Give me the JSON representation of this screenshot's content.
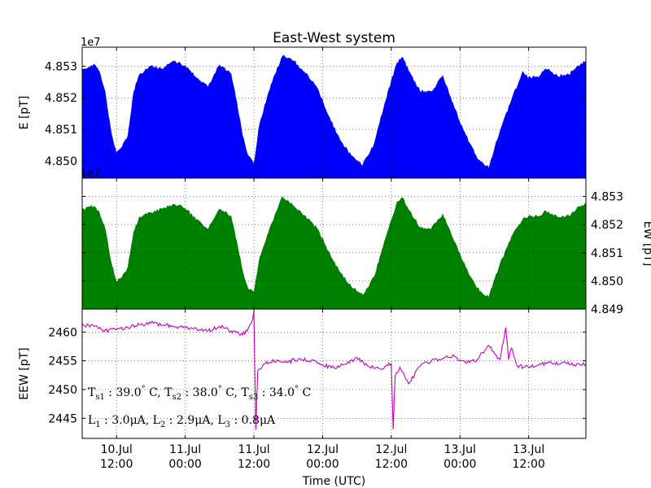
{
  "chart_data": {
    "title": "East-West system",
    "xlabel": "Time (UTC)",
    "time_range": [
      "2015-07-10 06:00",
      "2015-07-13 22:00"
    ],
    "x_ticks": [
      {
        "t": "2015-07-10 12:00",
        "line1": "10.Jul",
        "line2": "12:00"
      },
      {
        "t": "2015-07-11 00:00",
        "line1": "11.Jul",
        "line2": "00:00"
      },
      {
        "t": "2015-07-11 12:00",
        "line1": "11.Jul",
        "line2": "12:00"
      },
      {
        "t": "2015-07-12 00:00",
        "line1": "12.Jul",
        "line2": "00:00"
      },
      {
        "t": "2015-07-12 12:00",
        "line1": "12.Jul",
        "line2": "12:00"
      },
      {
        "t": "2015-07-13 00:00",
        "line1": "13.Jul",
        "line2": "00:00"
      },
      {
        "t": "2015-07-13 12:00",
        "line1": "13.Jul",
        "line2": "12:00"
      }
    ],
    "grid": true,
    "panels": [
      {
        "key": "E",
        "type": "area",
        "ylabel": "E [pT]",
        "ylabel_side": "left",
        "color": "#0000ff",
        "multiplier": "1e7",
        "ylim": [
          48494600,
          48536000
        ],
        "yticks": [
          {
            "v": 48500000,
            "label": "4.850"
          },
          {
            "v": 48510000,
            "label": "4.851"
          },
          {
            "v": 48520000,
            "label": "4.852"
          },
          {
            "v": 48530000,
            "label": "4.853"
          }
        ],
        "series": {
          "x": [
            "2015-07-10 06:00",
            "2015-07-10 07:00",
            "2015-07-10 08:00",
            "2015-07-10 09:00",
            "2015-07-10 10:00",
            "2015-07-10 11:00",
            "2015-07-10 12:00",
            "2015-07-10 13:00",
            "2015-07-10 14:00",
            "2015-07-10 15:00",
            "2015-07-10 16:00",
            "2015-07-10 18:00",
            "2015-07-10 20:00",
            "2015-07-10 22:00",
            "2015-07-11 00:00",
            "2015-07-11 02:00",
            "2015-07-11 04:00",
            "2015-07-11 06:00",
            "2015-07-11 08:00",
            "2015-07-11 09:00",
            "2015-07-11 10:00",
            "2015-07-11 11:00",
            "2015-07-11 12:00",
            "2015-07-11 13:00",
            "2015-07-11 15:00",
            "2015-07-11 17:00",
            "2015-07-11 19:00",
            "2015-07-11 21:00",
            "2015-07-11 23:00",
            "2015-07-12 01:00",
            "2015-07-12 03:00",
            "2015-07-12 05:00",
            "2015-07-12 07:00",
            "2015-07-12 09:00",
            "2015-07-12 10:00",
            "2015-07-12 11:00",
            "2015-07-12 12:00",
            "2015-07-12 13:00",
            "2015-07-12 14:00",
            "2015-07-12 15:00",
            "2015-07-12 17:00",
            "2015-07-12 19:00",
            "2015-07-12 21:00",
            "2015-07-12 23:00",
            "2015-07-13 01:00",
            "2015-07-13 03:00",
            "2015-07-13 05:00",
            "2015-07-13 07:00",
            "2015-07-13 09:00",
            "2015-07-13 11:00",
            "2015-07-13 12:00",
            "2015-07-13 13:00",
            "2015-07-13 14:00",
            "2015-07-13 15:00",
            "2015-07-13 17:00",
            "2015-07-13 19:00",
            "2015-07-13 21:00",
            "2015-07-13 22:00"
          ],
          "y": [
            48528700,
            48529500,
            48530600,
            48528300,
            48522000,
            48509700,
            48502300,
            48504500,
            48508200,
            48521900,
            48527300,
            48529900,
            48529100,
            48531600,
            48530200,
            48526100,
            48523300,
            48530400,
            48527700,
            48518800,
            48508000,
            48501700,
            48499000,
            48511700,
            48524200,
            48533200,
            48531600,
            48527700,
            48523300,
            48514400,
            48506800,
            48501700,
            48498700,
            48505300,
            48512300,
            48519000,
            48525200,
            48531100,
            48532800,
            48528600,
            48522100,
            48521900,
            48527000,
            48516800,
            48508200,
            48500800,
            48497800,
            48509500,
            48519300,
            48528300,
            48526300,
            48526600,
            48527000,
            48529100,
            48526900,
            48527300,
            48530400,
            48531600
          ]
        }
      },
      {
        "key": "EW",
        "type": "area",
        "ylabel": "EW [pT]",
        "ylabel_side": "right",
        "color": "#008000",
        "multiplier": "1e7",
        "ylim": [
          48490000,
          48536500
        ],
        "yticks": [
          {
            "v": 48490000,
            "label": "4.849"
          },
          {
            "v": 48500000,
            "label": "4.850"
          },
          {
            "v": 48510000,
            "label": "4.851"
          },
          {
            "v": 48520000,
            "label": "4.852"
          },
          {
            "v": 48530000,
            "label": "4.853"
          }
        ],
        "series": {
          "x": [
            "2015-07-10 06:00",
            "2015-07-10 07:00",
            "2015-07-10 08:00",
            "2015-07-10 09:00",
            "2015-07-10 10:00",
            "2015-07-10 11:00",
            "2015-07-10 12:00",
            "2015-07-10 13:00",
            "2015-07-10 14:00",
            "2015-07-10 15:00",
            "2015-07-10 16:00",
            "2015-07-10 18:00",
            "2015-07-10 20:00",
            "2015-07-10 22:00",
            "2015-07-11 00:00",
            "2015-07-11 02:00",
            "2015-07-11 04:00",
            "2015-07-11 06:00",
            "2015-07-11 08:00",
            "2015-07-11 09:00",
            "2015-07-11 10:00",
            "2015-07-11 11:00",
            "2015-07-11 12:00",
            "2015-07-11 13:00",
            "2015-07-11 15:00",
            "2015-07-11 17:00",
            "2015-07-11 19:00",
            "2015-07-11 21:00",
            "2015-07-11 23:00",
            "2015-07-12 01:00",
            "2015-07-12 03:00",
            "2015-07-12 05:00",
            "2015-07-12 07:00",
            "2015-07-12 09:00",
            "2015-07-12 10:00",
            "2015-07-12 11:00",
            "2015-07-12 12:00",
            "2015-07-12 13:00",
            "2015-07-12 14:00",
            "2015-07-12 15:00",
            "2015-07-12 17:00",
            "2015-07-12 19:00",
            "2015-07-12 21:00",
            "2015-07-12 23:00",
            "2015-07-13 01:00",
            "2015-07-13 03:00",
            "2015-07-13 05:00",
            "2015-07-13 07:00",
            "2015-07-13 09:00",
            "2015-07-13 11:00",
            "2015-07-13 12:00",
            "2015-07-13 13:00",
            "2015-07-13 14:00",
            "2015-07-13 15:00",
            "2015-07-13 17:00",
            "2015-07-13 19:00",
            "2015-07-13 21:00",
            "2015-07-13 22:00"
          ],
          "y": [
            48525000,
            48526100,
            48526500,
            48524300,
            48518600,
            48507100,
            48499700,
            48501400,
            48505100,
            48517400,
            48522700,
            48524300,
            48525500,
            48527300,
            48525700,
            48521700,
            48518300,
            48525500,
            48523100,
            48514000,
            48503600,
            48497100,
            48495800,
            48508300,
            48519900,
            48529900,
            48526500,
            48523100,
            48518700,
            48510600,
            48503100,
            48497900,
            48494900,
            48501400,
            48508500,
            48515100,
            48521500,
            48528000,
            48529500,
            48525300,
            48519100,
            48518500,
            48523700,
            48513900,
            48504800,
            48497400,
            48494100,
            48506000,
            48515700,
            48521900,
            48523000,
            48522700,
            48523100,
            48524800,
            48522700,
            48523100,
            48526500,
            48527300
          ]
        }
      },
      {
        "key": "EEW",
        "type": "line",
        "ylabel": "EEW [pT]",
        "ylabel_side": "left",
        "color": "#bf00bf",
        "ylim": [
          2441.5,
          2464.0
        ],
        "yticks": [
          {
            "v": 2445,
            "label": "2445"
          },
          {
            "v": 2450,
            "label": "2450"
          },
          {
            "v": 2455,
            "label": "2455"
          },
          {
            "v": 2460,
            "label": "2460"
          }
        ],
        "series": {
          "x": [
            "2015-07-10 06:00",
            "2015-07-10 08:00",
            "2015-07-10 10:00",
            "2015-07-10 12:00",
            "2015-07-10 14:00",
            "2015-07-10 16:00",
            "2015-07-10 18:00",
            "2015-07-10 20:00",
            "2015-07-10 22:00",
            "2015-07-11 00:00",
            "2015-07-11 02:00",
            "2015-07-11 04:00",
            "2015-07-11 06:00",
            "2015-07-11 08:00",
            "2015-07-11 10:00",
            "2015-07-11 11:00",
            "2015-07-11 11:30",
            "2015-07-11 12:00",
            "2015-07-11 12:20",
            "2015-07-11 12:40",
            "2015-07-11 14:00",
            "2015-07-11 16:00",
            "2015-07-11 18:00",
            "2015-07-11 20:00",
            "2015-07-11 22:00",
            "2015-07-12 00:00",
            "2015-07-12 02:00",
            "2015-07-12 04:00",
            "2015-07-12 06:00",
            "2015-07-12 08:00",
            "2015-07-12 10:00",
            "2015-07-12 12:00",
            "2015-07-12 12:20",
            "2015-07-12 12:40",
            "2015-07-12 13:30",
            "2015-07-12 15:00",
            "2015-07-12 17:00",
            "2015-07-12 19:00",
            "2015-07-12 21:00",
            "2015-07-12 23:00",
            "2015-07-13 01:00",
            "2015-07-13 03:00",
            "2015-07-13 05:00",
            "2015-07-13 07:00",
            "2015-07-13 08:00",
            "2015-07-13 08:30",
            "2015-07-13 09:00",
            "2015-07-13 10:00",
            "2015-07-13 12:00",
            "2015-07-13 14:00",
            "2015-07-13 16:00",
            "2015-07-13 18:00",
            "2015-07-13 20:00",
            "2015-07-13 22:00"
          ],
          "y": [
            2461.2,
            2461.0,
            2460.3,
            2460.4,
            2460.8,
            2461.3,
            2461.6,
            2461.2,
            2461.0,
            2460.8,
            2460.5,
            2460.2,
            2461.0,
            2460.2,
            2459.5,
            2460.6,
            2461.5,
            2463.5,
            2443.0,
            2453.2,
            2454.5,
            2455.1,
            2454.8,
            2455.4,
            2455.0,
            2454.3,
            2453.8,
            2454.4,
            2455.6,
            2454.0,
            2453.6,
            2454.5,
            2443.1,
            2452.2,
            2453.9,
            2451.0,
            2454.0,
            2455.0,
            2455.4,
            2455.8,
            2454.6,
            2455.2,
            2457.7,
            2455.2,
            2460.8,
            2455.2,
            2457.2,
            2454.1,
            2453.8,
            2454.5,
            2454.6,
            2454.7,
            2454.3,
            2454.4
          ]
        },
        "annotations": [
          "T$_{s1}$ : 39.0$^{\\circ}$ C, T$_{s2}$ : 38.0$^{\\circ}$ C, T$_{s3}$ : 34.0$^{\\circ}$ C",
          "L$_1$ : 3.0$\\mu$A, L$_2$ : 2.9$\\mu$A, L$_3$ : 0.8$\\mu$A"
        ]
      }
    ]
  }
}
